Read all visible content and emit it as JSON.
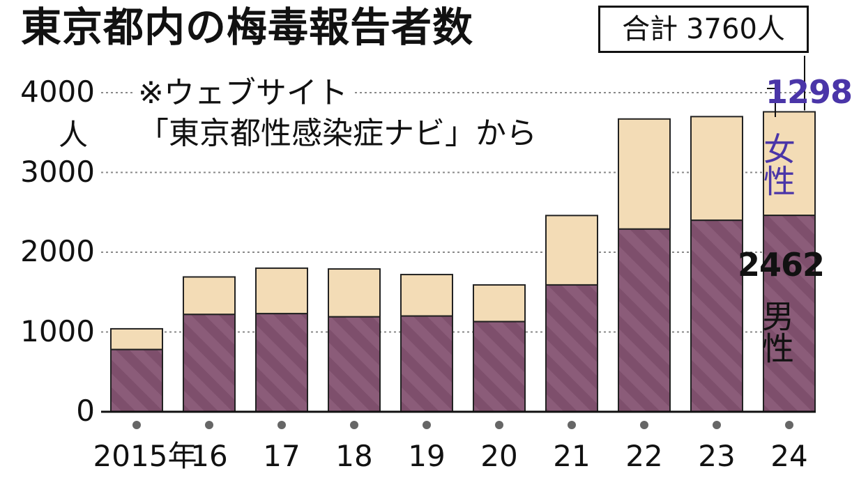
{
  "title": "東京都内の梅毒報告者数",
  "total": {
    "label": "合計",
    "value": "3760人"
  },
  "source": {
    "line1": "※ウェブサイト",
    "line2": "「東京都性感染症ナビ」から"
  },
  "unit": "人",
  "annotations": {
    "female_value": "1298",
    "female_label": "女性",
    "male_value": "2462",
    "male_label": "男性"
  },
  "colors": {
    "male": "#7e4f6c",
    "female": "#f3dcb6",
    "female_text": "#4a35a8",
    "grid": "#888888"
  },
  "chart_data": {
    "type": "bar",
    "stacked": true,
    "title": "東京都内の梅毒報告者数",
    "categories": [
      "2015年",
      "16",
      "17",
      "18",
      "19",
      "20",
      "21",
      "22",
      "23",
      "24"
    ],
    "series": [
      {
        "name": "男性",
        "values": [
          780,
          1220,
          1230,
          1190,
          1200,
          1130,
          1590,
          2290,
          2400,
          2462
        ]
      },
      {
        "name": "女性",
        "values": [
          260,
          470,
          570,
          600,
          520,
          460,
          870,
          1380,
          1300,
          1298
        ]
      }
    ],
    "ylim": [
      0,
      4000
    ],
    "yticks": [
      "0",
      "1000",
      "2000",
      "3000",
      "4000"
    ],
    "ylabel": "人",
    "grid": true
  }
}
